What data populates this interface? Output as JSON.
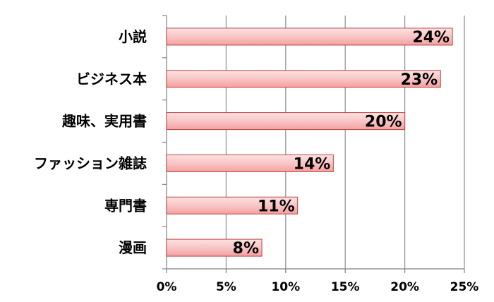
{
  "chart_data": {
    "type": "bar",
    "orientation": "horizontal",
    "categories": [
      "小説",
      "ビジネス本",
      "趣味、実用書",
      "ファッション雑誌",
      "専門書",
      "漫画"
    ],
    "values": [
      24,
      23,
      20,
      14,
      11,
      8
    ],
    "data_labels": [
      "24%",
      "23%",
      "20%",
      "14%",
      "11%",
      "8%"
    ],
    "x_ticks": [
      "0%",
      "5%",
      "10%",
      "15%",
      "20%",
      "25%"
    ],
    "xlim": [
      0,
      25
    ],
    "x_unit": "%",
    "title": "",
    "xlabel": "",
    "ylabel": "",
    "grid": "vertical",
    "legend": "none",
    "colors": {
      "bar_fill_top": "#fde2e2",
      "bar_fill_bottom": "#f4a0a0",
      "bar_stroke": "#c04040",
      "grid": "#909090",
      "axis": "#808080"
    }
  }
}
